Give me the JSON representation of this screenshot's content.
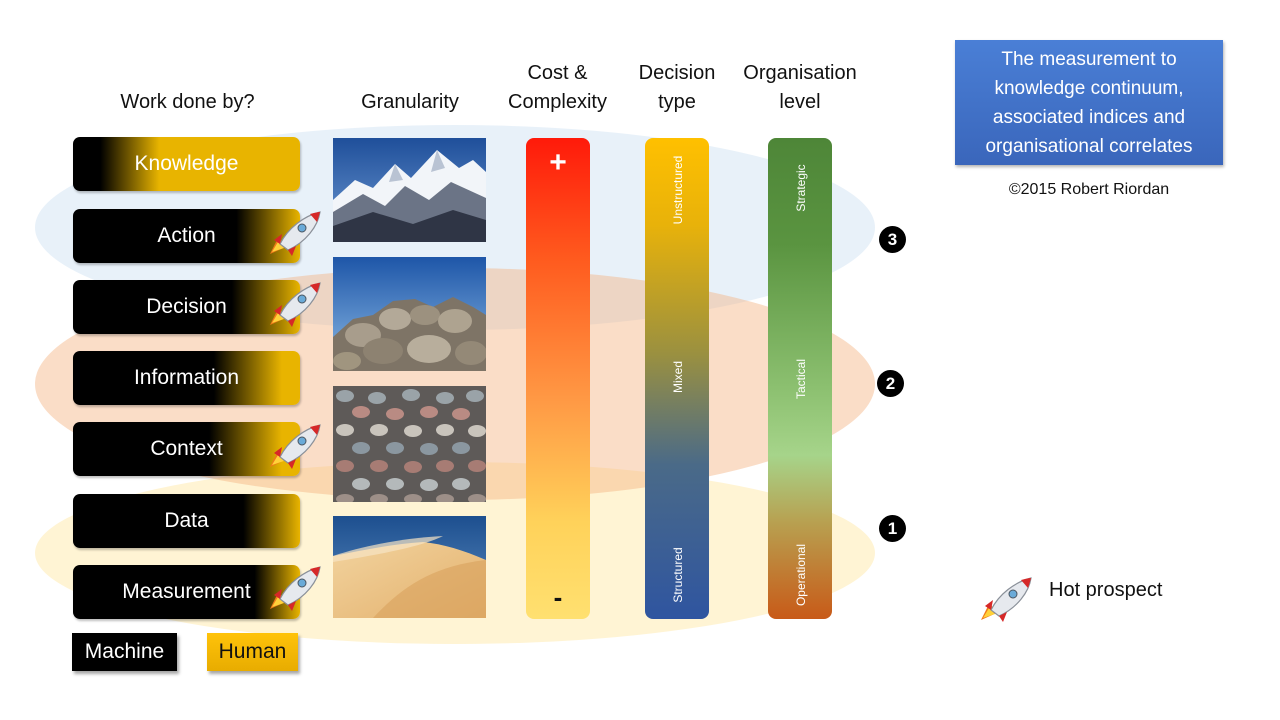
{
  "headers": {
    "work_done_by": "Work done by?",
    "granularity": "Granularity",
    "cost_line1": "Cost &",
    "cost_line2": "Complexity",
    "decision_line1": "Decision",
    "decision_line2": "type",
    "org_line1": "Organisation",
    "org_line2": "level"
  },
  "title_box": {
    "line1": "The measurement to",
    "line2": "knowledge continuum,",
    "line3": "associated indices and",
    "line4": "organisational correlates",
    "color": "#3f6fc6"
  },
  "copyright": "©2015 Robert Riordan",
  "levels": [
    {
      "label": "Knowledge",
      "hot_prospect": false
    },
    {
      "label": "Action",
      "hot_prospect": true
    },
    {
      "label": "Decision",
      "hot_prospect": true
    },
    {
      "label": "Information",
      "hot_prospect": false
    },
    {
      "label": "Context",
      "hot_prospect": true
    },
    {
      "label": "Data",
      "hot_prospect": false
    },
    {
      "label": "Measurement",
      "hot_prospect": true
    }
  ],
  "cost_scale": {
    "top": "+",
    "bottom": "-"
  },
  "decision_type": {
    "top": "Unstructured",
    "middle": "Mixed",
    "bottom": "Structured"
  },
  "org_level": {
    "top": "Strategic",
    "middle": "Tactical",
    "bottom": "Operational"
  },
  "zones": {
    "top": "3",
    "middle": "2",
    "bottom": "1"
  },
  "legend": {
    "machine": "Machine",
    "human": "Human",
    "hot_prospect": "Hot prospect"
  },
  "colors": {
    "human_gold": "#e8b400",
    "machine_black": "#000000",
    "zone3": "#e6eff8",
    "zone2": "#f9d9c2",
    "zone1": "#fdefc8"
  }
}
